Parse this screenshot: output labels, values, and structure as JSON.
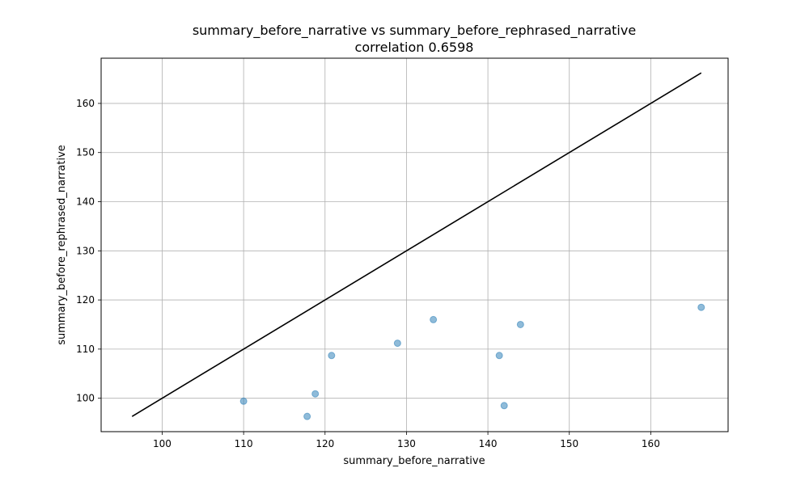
{
  "chart_data": {
    "type": "scatter",
    "title": "summary_before_narrative vs summary_before_rephrased_narrative",
    "subtitle": "correlation 0.6598",
    "xlabel": "summary_before_narrative",
    "ylabel": "summary_before_rephrased_narrative",
    "xlim": [
      92.5,
      169.5
    ],
    "ylim": [
      93.2,
      169.2
    ],
    "x_ticks": [
      100,
      110,
      120,
      130,
      140,
      150,
      160
    ],
    "y_ticks": [
      100,
      110,
      120,
      130,
      140,
      150,
      160
    ],
    "grid": true,
    "points": [
      {
        "x": 110.0,
        "y": 99.4
      },
      {
        "x": 117.8,
        "y": 96.3
      },
      {
        "x": 118.8,
        "y": 100.9
      },
      {
        "x": 120.8,
        "y": 108.7
      },
      {
        "x": 128.9,
        "y": 111.2
      },
      {
        "x": 133.3,
        "y": 116.0
      },
      {
        "x": 141.4,
        "y": 108.7
      },
      {
        "x": 142.0,
        "y": 98.5
      },
      {
        "x": 144.0,
        "y": 115.0
      },
      {
        "x": 166.2,
        "y": 118.5
      }
    ],
    "reference_line": {
      "type": "identity",
      "x": [
        96.3,
        166.2
      ],
      "y": [
        96.3,
        166.2
      ]
    },
    "colors": {
      "points": "#1f77b4",
      "line": "#000000",
      "grid": "#b0b0b0",
      "axes": "#000000"
    }
  }
}
